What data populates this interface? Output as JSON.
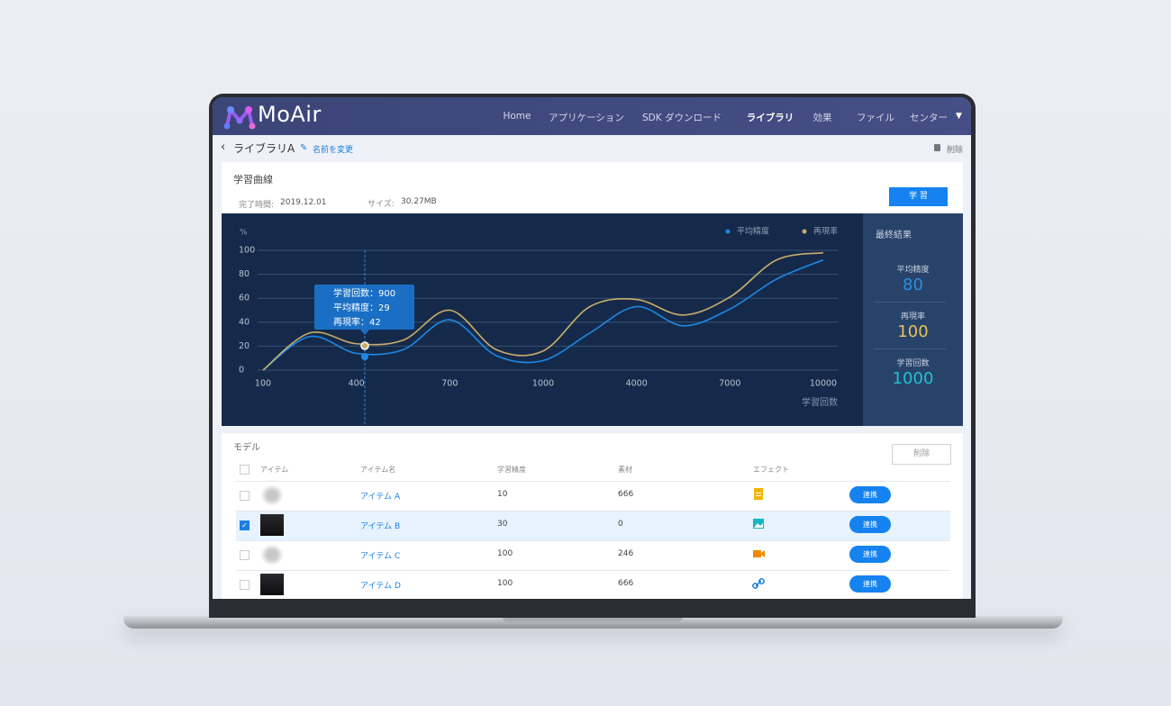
{
  "header": {
    "logo": "MoAir",
    "nav": [
      "Home",
      "アプリケーション",
      "SDK ダウンロード",
      "ライブラリ",
      "効果",
      "ファイル",
      "センター"
    ]
  },
  "breadcrumb": {
    "title": "ライブラリA",
    "rename": "名前を変更",
    "delete": "削除"
  },
  "panel": {
    "title": "学習曲線",
    "completed_label": "完了時間:",
    "completed": "2019.12.01",
    "size_label": "サイズ:",
    "size": "30.27MB",
    "button": "学 習"
  },
  "chart_data": {
    "type": "line",
    "y_label": "%",
    "x_label": "学習回数",
    "categories": [
      "100",
      null,
      "400",
      null,
      "700",
      null,
      "1000",
      null,
      "4000",
      null,
      "7000",
      null,
      "10000"
    ],
    "series": [
      {
        "name": "平均精度",
        "color": "#1e88e5",
        "values": [
          0,
          28,
          14,
          17,
          42,
          12,
          8,
          31,
          53,
          37,
          51,
          76,
          92
        ]
      },
      {
        "name": "再現率",
        "color": "#c9ad6a",
        "values": [
          0,
          31,
          22,
          25,
          50,
          17,
          16,
          53,
          59,
          46,
          61,
          92,
          98
        ]
      }
    ],
    "ylim": [
      0,
      100
    ],
    "yticks": [
      0,
      20,
      40,
      60,
      80,
      100
    ],
    "grid": true,
    "tooltip": [
      "学習回数：900",
      "平均精度：29",
      "再現率：42"
    ]
  },
  "results": {
    "title": "最終結果",
    "items": [
      {
        "label": "平均精度",
        "value": "80"
      },
      {
        "label": "再現率",
        "value": "100"
      },
      {
        "label": "学習回数",
        "value": "1000"
      }
    ]
  },
  "model": {
    "title": "モデル",
    "delete": "削除",
    "columns": [
      "アイテム",
      "アイテム名",
      "学習精度",
      "素材",
      "エフェクト"
    ],
    "rows": [
      [
        "アイテム A",
        "10",
        "666"
      ],
      [
        "アイテム B",
        "30",
        "0"
      ],
      [
        "アイテム C",
        "100",
        "246"
      ],
      [
        "アイテム D",
        "100",
        "666"
      ]
    ],
    "action": "連携"
  }
}
